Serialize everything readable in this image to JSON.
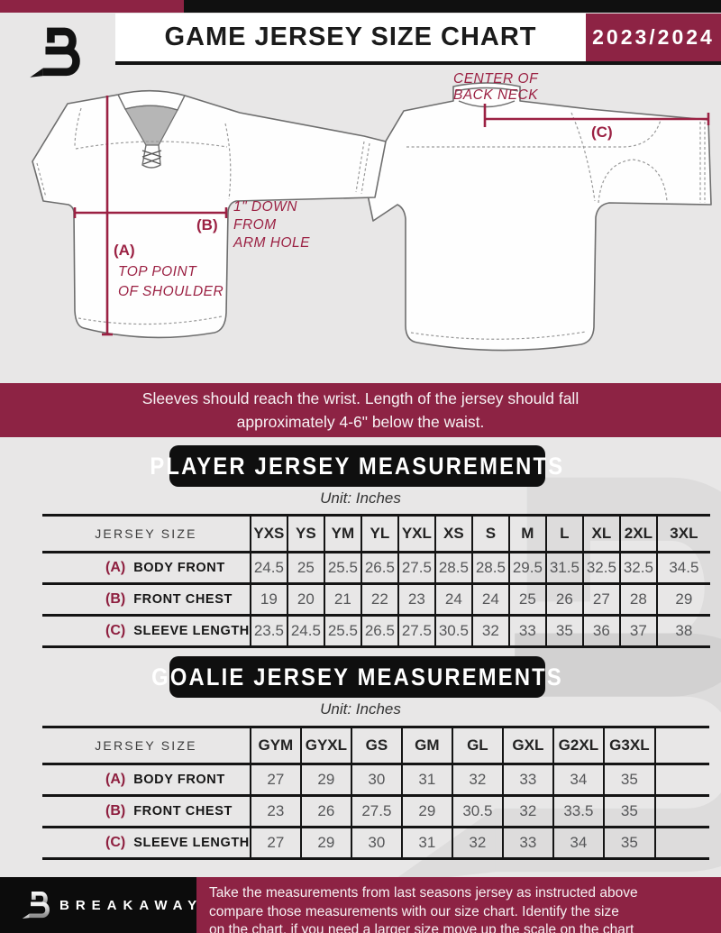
{
  "colors": {
    "maroon": "#8d2344",
    "black": "#0f0f0f",
    "background": "#e8e7e7",
    "annotation": "#9b2143"
  },
  "header": {
    "title": "GAME JERSEY SIZE CHART",
    "season": "2023/2024"
  },
  "diagram": {
    "front": {
      "a_label": "(A)",
      "a_note_line1": "TOP POINT",
      "a_note_line2": "OF SHOULDER",
      "b_label": "(B)",
      "b_note_line1": "1\" DOWN",
      "b_note_line2": "FROM",
      "b_note_line3": "ARM HOLE"
    },
    "back": {
      "c_label": "(C)",
      "note_line1": "CENTER OF",
      "note_line2": "BACK NECK"
    }
  },
  "notice": {
    "line1": "Sleeves should reach the wrist. Length of the jersey should fall",
    "line2": "approximately 4-6\" below the waist."
  },
  "player_table": {
    "title": "PLAYER JERSEY MEASUREMENTS",
    "unit": "Unit: Inches",
    "corner_header": "JERSEY SIZE",
    "sizes": [
      "YXS",
      "YS",
      "YM",
      "YL",
      "YXL",
      "XS",
      "S",
      "M",
      "L",
      "XL",
      "2XL",
      "3XL"
    ],
    "rows": [
      {
        "key": "(A)",
        "label": "BODY FRONT",
        "values": [
          "24.5",
          "25",
          "25.5",
          "26.5",
          "27.5",
          "28.5",
          "28.5",
          "29.5",
          "31.5",
          "32.5",
          "32.5",
          "34.5"
        ]
      },
      {
        "key": "(B)",
        "label": "FRONT CHEST",
        "values": [
          "19",
          "20",
          "21",
          "22",
          "23",
          "24",
          "24",
          "25",
          "26",
          "27",
          "28",
          "29"
        ]
      },
      {
        "key": "(C)",
        "label": "SLEEVE LENGTH",
        "values": [
          "23.5",
          "24.5",
          "25.5",
          "26.5",
          "27.5",
          "30.5",
          "32",
          "33",
          "35",
          "36",
          "37",
          "38"
        ]
      }
    ]
  },
  "goalie_table": {
    "title": "GOALIE JERSEY MEASUREMENTS",
    "unit": "Unit: Inches",
    "corner_header": "JERSEY SIZE",
    "sizes": [
      "GYM",
      "GYXL",
      "GS",
      "GM",
      "GL",
      "GXL",
      "G2XL",
      "G3XL"
    ],
    "rows": [
      {
        "key": "(A)",
        "label": "BODY FRONT",
        "values": [
          "27",
          "29",
          "30",
          "31",
          "32",
          "33",
          "34",
          "35"
        ]
      },
      {
        "key": "(B)",
        "label": "FRONT CHEST",
        "values": [
          "23",
          "26",
          "27.5",
          "29",
          "30.5",
          "32",
          "33.5",
          "35"
        ]
      },
      {
        "key": "(C)",
        "label": "SLEEVE LENGTH",
        "values": [
          "27",
          "29",
          "30",
          "31",
          "32",
          "33",
          "34",
          "35"
        ]
      }
    ]
  },
  "footer": {
    "brand": "BREAKAWAY",
    "line1": "Take the measurements from last seasons jersey as instructed above",
    "line2": "compare those measurements  with our size chart. Identify the size",
    "line3": "on the chart, if you need a larger size move up the scale on the chart"
  }
}
